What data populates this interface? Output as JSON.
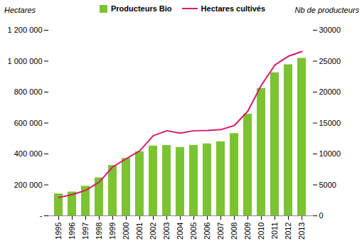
{
  "chart_data": {
    "type": "bar",
    "ylabel": "Hectares",
    "y2label": "Nb de producteurs",
    "categories": [
      "1995",
      "1996",
      "1997",
      "1998",
      "1999",
      "2000",
      "2001",
      "2002",
      "2003",
      "2004",
      "2005",
      "2006",
      "2007",
      "2008",
      "2009",
      "2010",
      "2011",
      "2012",
      "2013"
    ],
    "series": [
      {
        "name": "Producteurs Bio",
        "type": "bar",
        "axis": "y2",
        "color": "#7cc332",
        "values": [
          3550,
          3850,
          4780,
          6140,
          8140,
          9280,
          10360,
          11290,
          11380,
          11060,
          11400,
          11640,
          11980,
          13300,
          16450,
          20600,
          23140,
          24430,
          25470
        ]
      },
      {
        "name": "Hectares cultivés",
        "type": "line",
        "color": "#d81b6e",
        "values": [
          118000,
          137000,
          165000,
          218000,
          316000,
          370000,
          420000,
          518000,
          550000,
          534000,
          550000,
          552000,
          557000,
          584000,
          677000,
          845000,
          975000,
          1032000,
          1062000
        ]
      }
    ],
    "ylim": [
      0,
      1200000
    ],
    "yticks": [
      {
        "value": 0,
        "label": "-"
      },
      {
        "value": 200000,
        "label": "200 000"
      },
      {
        "value": 400000,
        "label": "400 000"
      },
      {
        "value": 600000,
        "label": "600 000"
      },
      {
        "value": 800000,
        "label": "800 000"
      },
      {
        "value": 1000000,
        "label": "1 000 000"
      },
      {
        "value": 1200000,
        "label": "1 200 000"
      }
    ],
    "y2lim": [
      0,
      30000
    ],
    "y2ticks": [
      0,
      5000,
      10000,
      15000,
      20000,
      25000,
      30000
    ],
    "grid": false,
    "legend": "top"
  }
}
